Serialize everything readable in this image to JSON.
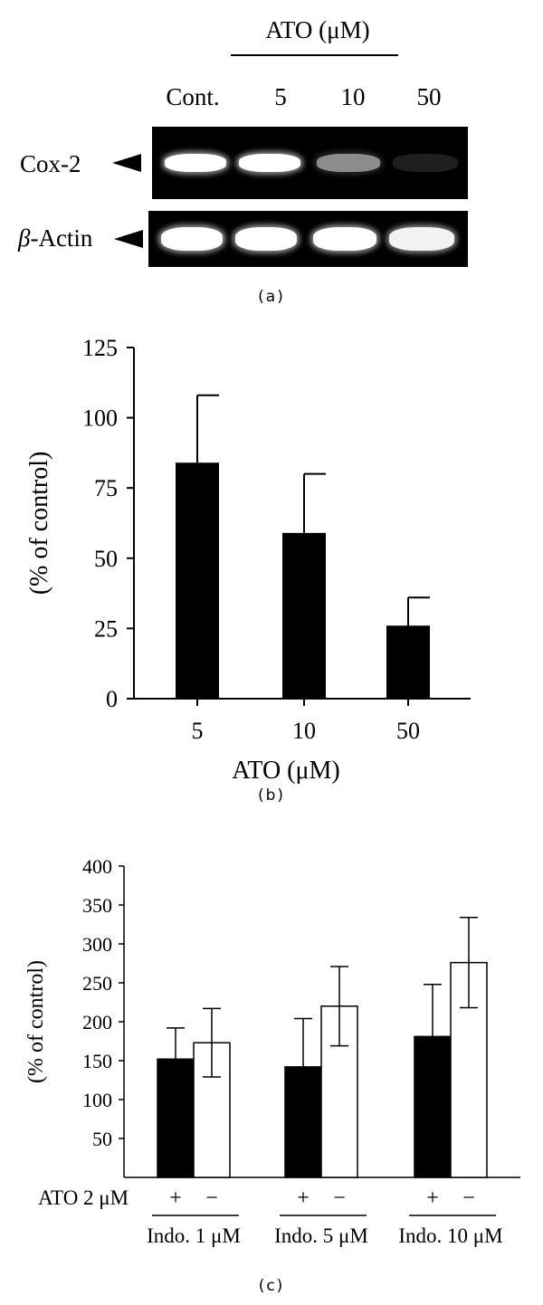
{
  "panel_a": {
    "header": "ATO (μM)",
    "lanes": [
      "Cont.",
      "5",
      "10",
      "50"
    ],
    "rows": [
      {
        "label": "Cox-2",
        "band_intensity": [
          1.0,
          1.0,
          0.55,
          0.12
        ]
      },
      {
        "label_prefix": "β",
        "label_suffix": "-Actin",
        "band_intensity": [
          1.0,
          1.0,
          1.0,
          0.95
        ]
      }
    ],
    "caption": "(a)"
  },
  "chart_data": [
    {
      "type": "bar",
      "categories": [
        "5",
        "10",
        "50"
      ],
      "values": [
        84,
        59,
        26
      ],
      "errors": [
        24,
        21,
        10
      ],
      "xlabel": "ATO (μM)",
      "ylabel": "(% of control)",
      "ylim": [
        0,
        125
      ],
      "yticks": [
        "0",
        "25",
        "50",
        "75",
        "100",
        "125"
      ],
      "bar_color": "#000000",
      "grid": false,
      "caption": "(b)"
    },
    {
      "type": "bar",
      "groups": [
        "Indo. 1 μM",
        "Indo. 5 μM",
        "Indo. 10 μM"
      ],
      "series": [
        {
          "marker": "+",
          "color": "#000000",
          "values": [
            152,
            142,
            181
          ],
          "errors": [
            40,
            62,
            67
          ]
        },
        {
          "marker": "−",
          "color": "#ffffff",
          "values": [
            173,
            220,
            276
          ],
          "errors": [
            44,
            51,
            58
          ]
        }
      ],
      "row_label": "ATO 2 μM",
      "ylabel": "(% of control)",
      "ylim": [
        0,
        400
      ],
      "yticks": [
        "50",
        "100",
        "150",
        "200",
        "250",
        "300",
        "350",
        "400"
      ],
      "grid": false,
      "caption": "(c)"
    }
  ]
}
